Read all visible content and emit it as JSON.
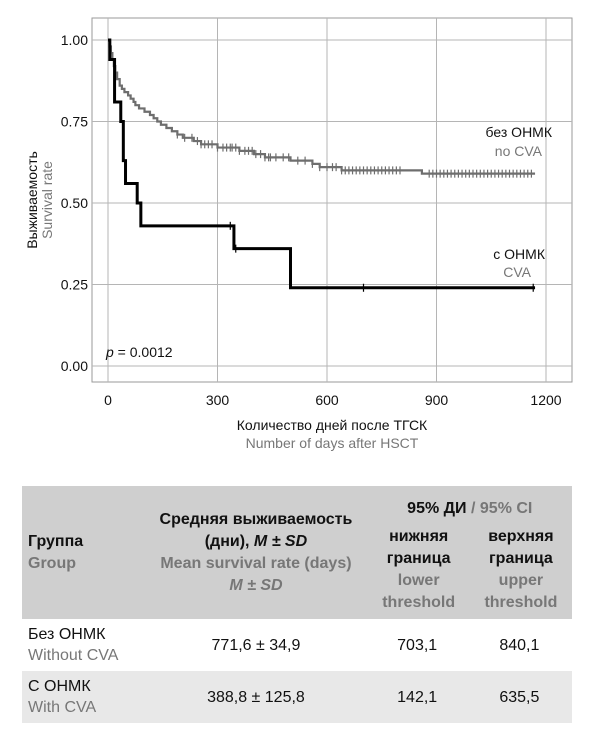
{
  "chart_data": {
    "type": "line",
    "step": true,
    "ylabel": [
      "Выживаемость",
      "Survival rate"
    ],
    "xlabel": [
      "Количество дней после ТГСК",
      "Number of days after HSCT"
    ],
    "xlim": [
      0,
      1200
    ],
    "ylim": [
      0,
      1
    ],
    "x_ticks": [
      "0",
      "300",
      "600",
      "900",
      "1200"
    ],
    "y_ticks": [
      "0.00",
      "0.25",
      "0.50",
      "0.75",
      "1.00"
    ],
    "grid": true,
    "annotation": {
      "italic": "p",
      "text": " = 0.0012"
    },
    "series": [
      {
        "name": [
          "без ОНМК",
          "no CVA"
        ],
        "color": "#6e6e6e",
        "points": [
          [
            0,
            1.0
          ],
          [
            4,
            0.98
          ],
          [
            8,
            0.96
          ],
          [
            12,
            0.94
          ],
          [
            16,
            0.92
          ],
          [
            20,
            0.9
          ],
          [
            25,
            0.88
          ],
          [
            32,
            0.86
          ],
          [
            38,
            0.85
          ],
          [
            45,
            0.84
          ],
          [
            55,
            0.83
          ],
          [
            62,
            0.82
          ],
          [
            70,
            0.81
          ],
          [
            75,
            0.8
          ],
          [
            85,
            0.79
          ],
          [
            100,
            0.78
          ],
          [
            115,
            0.77
          ],
          [
            125,
            0.76
          ],
          [
            135,
            0.75
          ],
          [
            145,
            0.74
          ],
          [
            160,
            0.73
          ],
          [
            175,
            0.72
          ],
          [
            190,
            0.71
          ],
          [
            205,
            0.7
          ],
          [
            235,
            0.69
          ],
          [
            255,
            0.68
          ],
          [
            300,
            0.67
          ],
          [
            360,
            0.66
          ],
          [
            400,
            0.65
          ],
          [
            430,
            0.64
          ],
          [
            470,
            0.64
          ],
          [
            500,
            0.63
          ],
          [
            560,
            0.62
          ],
          [
            580,
            0.61
          ],
          [
            640,
            0.6
          ],
          [
            700,
            0.6
          ],
          [
            860,
            0.59
          ],
          [
            1170,
            0.59
          ]
        ],
        "censor_x": [
          190,
          210,
          230,
          245,
          255,
          265,
          275,
          285,
          300,
          315,
          325,
          335,
          340,
          350,
          360,
          375,
          385,
          395,
          405,
          418,
          430,
          440,
          445,
          460,
          480,
          495,
          520,
          540,
          560,
          580,
          600,
          615,
          625,
          640,
          650,
          660,
          670,
          680,
          690,
          700,
          710,
          720,
          730,
          740,
          750,
          760,
          770,
          780,
          790,
          800,
          880,
          890,
          900,
          910,
          920,
          930,
          940,
          950,
          960,
          970,
          980,
          990,
          1000,
          1010,
          1020,
          1030,
          1040,
          1050,
          1060,
          1070,
          1080,
          1090,
          1100,
          1110,
          1120,
          1130,
          1140,
          1150,
          1160
        ]
      },
      {
        "name": [
          "с ОНМК",
          "CVA"
        ],
        "color": "#000000",
        "points": [
          [
            0,
            1.0
          ],
          [
            5,
            0.94
          ],
          [
            18,
            0.81
          ],
          [
            35,
            0.75
          ],
          [
            42,
            0.63
          ],
          [
            48,
            0.56
          ],
          [
            80,
            0.5
          ],
          [
            90,
            0.43
          ],
          [
            345,
            0.36
          ],
          [
            500,
            0.24
          ],
          [
            1170,
            0.24
          ]
        ],
        "censor_x": [
          335,
          350,
          700,
          1165
        ]
      }
    ]
  },
  "table": {
    "header": {
      "group_ru": "Группа",
      "group_en": "Group",
      "mean_ru_1": "Средняя выживаемость",
      "mean_ru_2": "(дни), ",
      "mean_ru_2_italic": "M ± SD",
      "mean_en_1": "Mean survival rate (days)",
      "mean_en_2": "M ± SD",
      "ci_ru": "95% ДИ",
      "ci_sep": " / ",
      "ci_en": "95% CI",
      "lower_ru_1": "нижняя",
      "lower_ru_2": "граница",
      "lower_en_1": "lower",
      "lower_en_2": "threshold",
      "upper_ru_1": "верхняя",
      "upper_ru_2": "граница",
      "upper_en_1": "upper",
      "upper_en_2": "threshold"
    },
    "rows": [
      {
        "group_ru": "Без ОНМК",
        "group_en": "Without CVA",
        "mean": "771,6 ± 34,9",
        "lower": "703,1",
        "upper": "840,1"
      },
      {
        "group_ru": "С ОНМК",
        "group_en": "With CVA",
        "mean": "388,8 ± 125,8",
        "lower": "142,1",
        "upper": "635,5"
      }
    ]
  }
}
